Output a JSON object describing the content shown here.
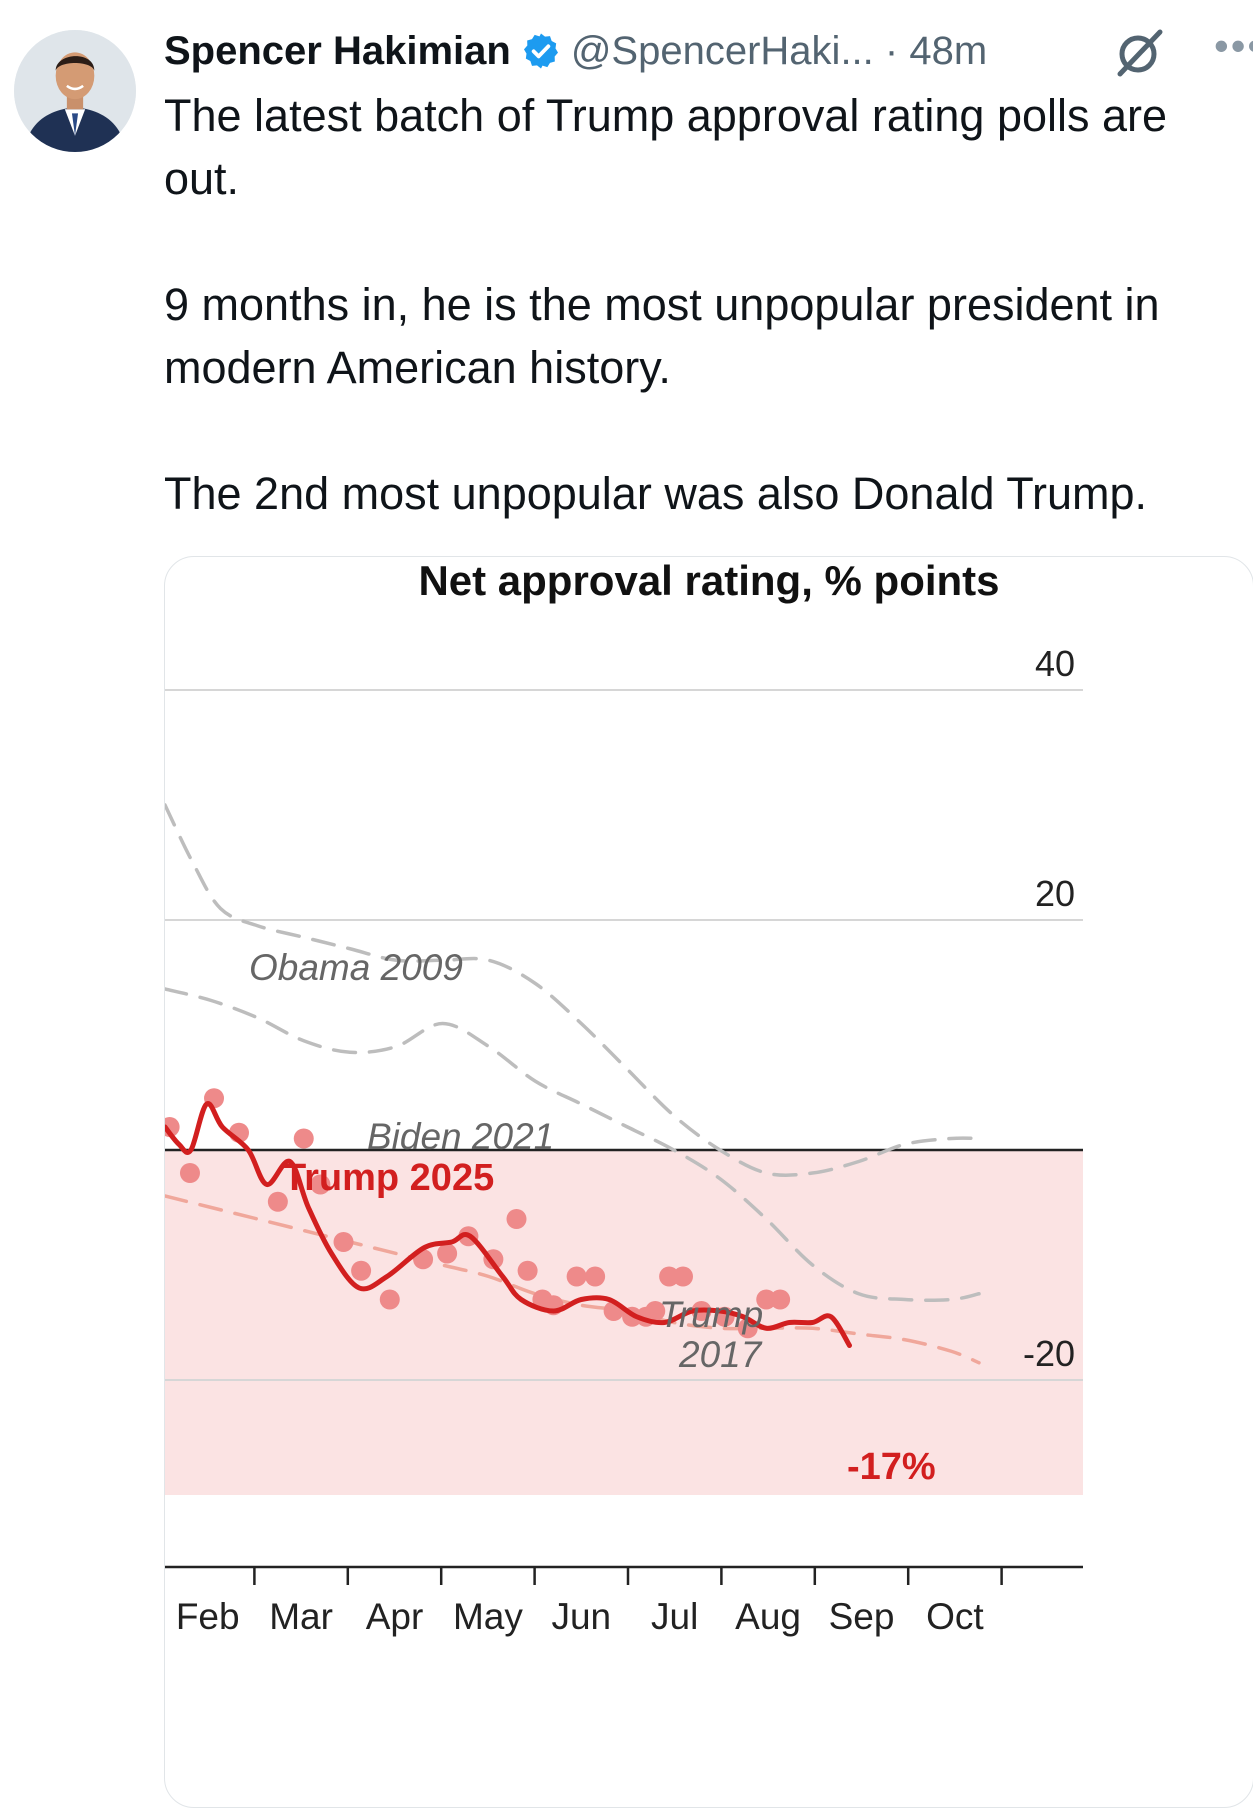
{
  "tweet": {
    "author_name": "Spencer Hakimian",
    "handle_time": "@SpencerHaki... · 48m",
    "more_label": "•••",
    "text": "The latest batch of Trump approval rating polls are out.\n\n9 months in, he is the most unpopular president in modern American history.\n\nThe 2nd most unpopular was also Donald Trump.",
    "icons": [
      "avatar",
      "verified-badge-icon",
      "grok-icon",
      "more-icon"
    ],
    "colors": {
      "verified": "#1d9bf0",
      "muted": "#536471"
    }
  },
  "chart_data": {
    "type": "line",
    "title": "Net approval rating, % points",
    "categories": [
      "Feb",
      "Mar",
      "Apr",
      "May",
      "Jun",
      "Jul",
      "Aug",
      "Sep",
      "Oct"
    ],
    "y_ticks": [
      {
        "value": 40,
        "label": "40"
      },
      {
        "value": 20,
        "label": "20"
      },
      {
        "value": -20,
        "label": "-20"
      }
    ],
    "ylim": [
      -30,
      45
    ],
    "grid": true,
    "negative_region_color": "#fbe3e3",
    "series": [
      {
        "name": "Obama 2009",
        "style": "dashed",
        "color": "#bdbdbd",
        "x": [
          0.0,
          0.3,
          0.6,
          1.0,
          1.5,
          2.0,
          2.5,
          3.0,
          3.5,
          4.0,
          4.5,
          5.0,
          5.5,
          6.0,
          6.5,
          7.0,
          7.5,
          8.0,
          8.5,
          8.8
        ],
        "values": [
          30,
          25,
          21,
          19.5,
          18.5,
          17.5,
          16.5,
          16.5,
          16.5,
          14.5,
          11,
          7,
          3,
          0,
          -2,
          -2,
          -1,
          0.5,
          1,
          1
        ]
      },
      {
        "name": "Biden 2021",
        "style": "dashed",
        "color": "#bdbdbd",
        "x": [
          0.0,
          0.5,
          1.0,
          1.5,
          2.0,
          2.5,
          3.0,
          3.5,
          4.0,
          4.5,
          5.0,
          5.5,
          6.0,
          6.5,
          7.0,
          7.5,
          8.0,
          8.5,
          8.8
        ],
        "values": [
          14,
          13,
          11.5,
          9.5,
          8.5,
          9,
          11,
          9,
          6,
          4,
          2,
          0,
          -2.5,
          -6,
          -10,
          -12.5,
          -13,
          -13,
          -12.5
        ]
      },
      {
        "name": "Trump 2017",
        "style": "dashed",
        "color": "#f0a79b",
        "x": [
          0.0,
          0.5,
          1.0,
          1.5,
          2.0,
          2.5,
          3.0,
          3.5,
          4.0,
          4.5,
          5.0,
          5.5,
          6.0,
          6.5,
          7.0,
          7.5,
          8.0,
          8.5,
          8.8
        ],
        "values": [
          -4,
          -5,
          -6,
          -7,
          -8,
          -9,
          -10,
          -11,
          -12.5,
          -13.5,
          -14,
          -15,
          -15.5,
          -15.5,
          -15.5,
          -16,
          -16.5,
          -17.5,
          -18.5
        ]
      },
      {
        "name": "Trump 2025",
        "style": "solid",
        "color": "#d21f1f",
        "x": [
          0.0,
          0.15,
          0.28,
          0.45,
          0.62,
          0.9,
          1.1,
          1.35,
          1.55,
          1.8,
          2.1,
          2.4,
          2.8,
          3.1,
          3.3,
          3.65,
          3.85,
          4.2,
          4.5,
          4.8,
          5.1,
          5.4,
          5.7,
          6.0,
          6.25,
          6.5,
          6.75,
          7.0,
          7.2,
          7.4
        ],
        "values": [
          2,
          0.5,
          0,
          4,
          2,
          0,
          -3,
          -1,
          -5,
          -9,
          -12,
          -11,
          -8.5,
          -8,
          -7.5,
          -11,
          -13,
          -14,
          -13,
          -13,
          -14.5,
          -15,
          -14,
          -14,
          -14.5,
          -15.5,
          -15,
          -15,
          -14.5,
          -17
        ]
      }
    ],
    "poll_points": {
      "color": "#ee8a8a",
      "x": [
        0.05,
        0.27,
        0.53,
        0.8,
        1.22,
        1.5,
        1.68,
        1.93,
        2.12,
        2.43,
        2.79,
        3.05,
        3.28,
        3.55,
        3.8,
        3.92,
        4.08,
        4.2,
        4.45,
        4.65,
        4.85,
        5.05,
        5.2,
        5.3,
        5.45,
        5.6,
        5.8,
        6.05,
        6.3,
        6.5,
        6.65
      ],
      "values": [
        2,
        -2,
        4.5,
        1.5,
        -4.5,
        1,
        -3,
        -8,
        -10.5,
        -13,
        -9.5,
        -9,
        -7.5,
        -9.5,
        -6,
        -10.5,
        -13,
        -13.5,
        -11,
        -11,
        -14,
        -14.5,
        -14.5,
        -14,
        -11,
        -11,
        -14,
        -14.5,
        -15.5,
        -13,
        -13
      ]
    },
    "annotations": [
      {
        "text": "Obama 2009",
        "color": "#666666"
      },
      {
        "text": "Biden 2021",
        "color": "#666666"
      },
      {
        "text": "Trump 2025",
        "color": "#d21f1f"
      },
      {
        "text": "Trump",
        "color": "#666666"
      },
      {
        "text": "2017",
        "color": "#666666"
      },
      {
        "text": "-17%",
        "color": "#d21f1f"
      }
    ]
  }
}
